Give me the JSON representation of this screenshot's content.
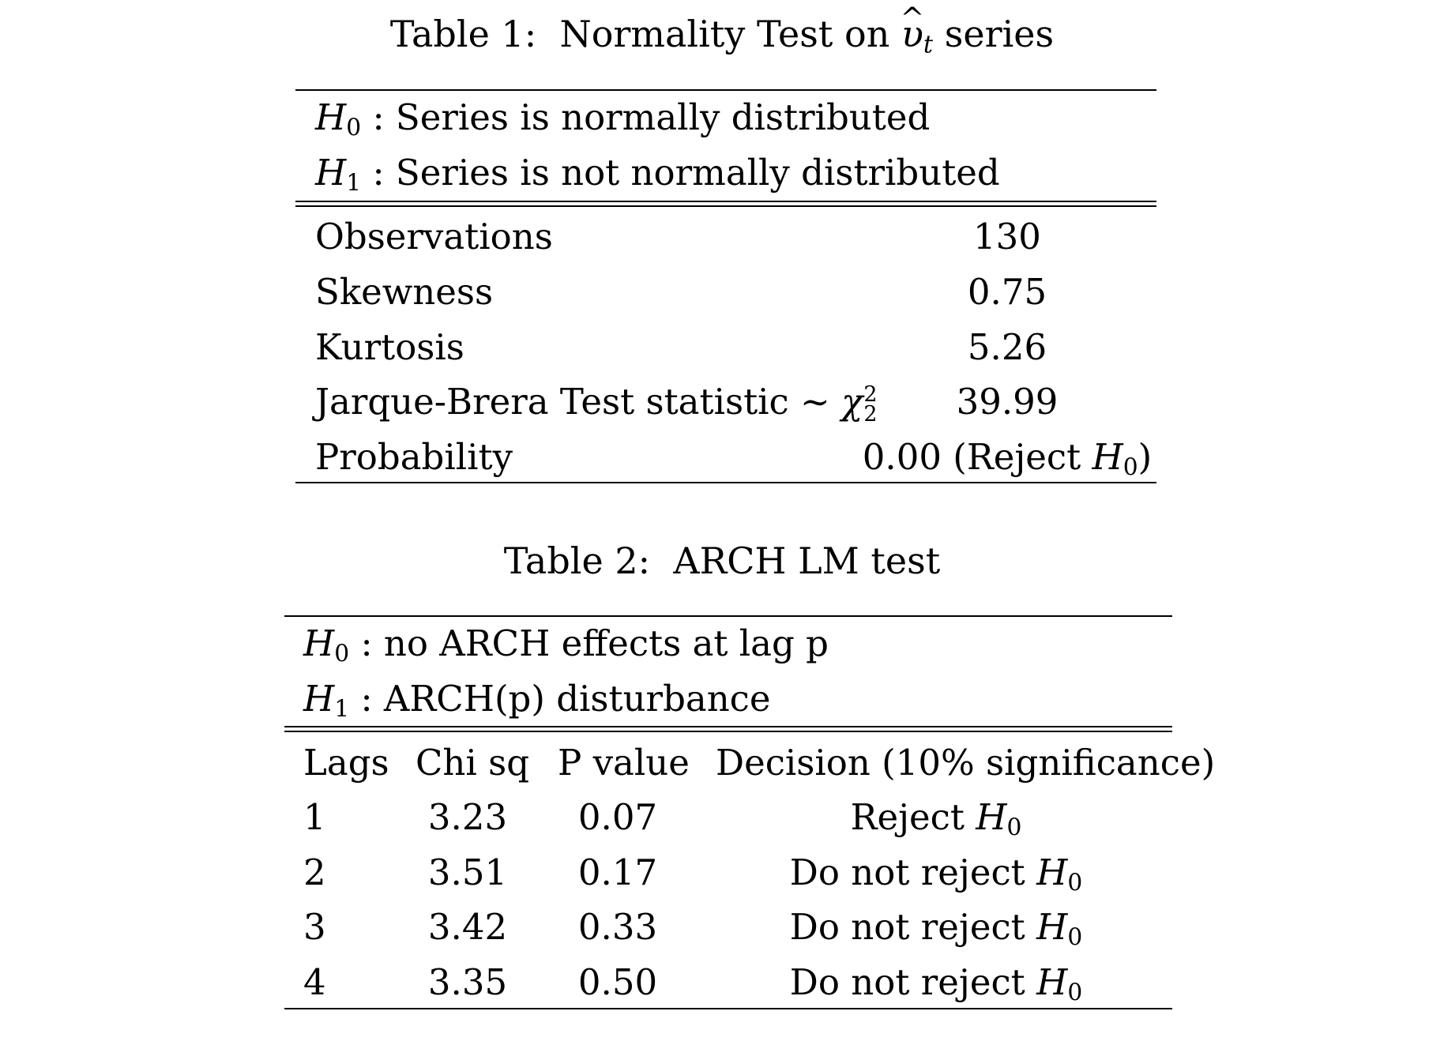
{
  "table1": {
    "caption_prefix": "Table 1:",
    "caption_title_start": "Normality Test on",
    "caption_var": "υ",
    "caption_var_sub": "t",
    "caption_title_end": "series",
    "h0_symbol": "H",
    "h0_sub": "0",
    "h0_text": ": Series is normally distributed",
    "h1_symbol": "H",
    "h1_sub": "1",
    "h1_text": ": Series is not normally distributed",
    "rows": [
      {
        "label": "Observations",
        "value": "130"
      },
      {
        "label": "Skewness",
        "value": "0.75"
      },
      {
        "label": "Kurtosis",
        "value": "5.26"
      },
      {
        "label": "Jarque-Brera Test statistic ∼",
        "label_math": "χ",
        "label_sup": "2",
        "label_sub": "2",
        "value": "39.99"
      },
      {
        "label": "Probability",
        "value": "0.00 (Reject",
        "value_math": "H",
        "value_sub": "0",
        "value_close": ")"
      }
    ]
  },
  "table2": {
    "caption_prefix": "Table 2:",
    "caption_title": "ARCH LM test",
    "h0_symbol": "H",
    "h0_sub": "0",
    "h0_text": ": no ARCH effects at lag p",
    "h1_symbol": "H",
    "h1_sub": "1",
    "h1_text": ": ARCH(p) disturbance",
    "headers": [
      "Lags",
      "Chi sq",
      "P value",
      "Decision (10% significance)"
    ],
    "rows": [
      {
        "lag": "1",
        "chi": "3.23",
        "p": "0.07",
        "decision": "Reject",
        "decision_math": "H",
        "decision_sub": "0"
      },
      {
        "lag": "2",
        "chi": "3.51",
        "p": "0.17",
        "decision": "Do not reject",
        "decision_math": "H",
        "decision_sub": "0"
      },
      {
        "lag": "3",
        "chi": "3.42",
        "p": "0.33",
        "decision": "Do not reject",
        "decision_math": "H",
        "decision_sub": "0"
      },
      {
        "lag": "4",
        "chi": "3.35",
        "p": "0.50",
        "decision": "Do not reject",
        "decision_math": "H",
        "decision_sub": "0"
      }
    ]
  }
}
